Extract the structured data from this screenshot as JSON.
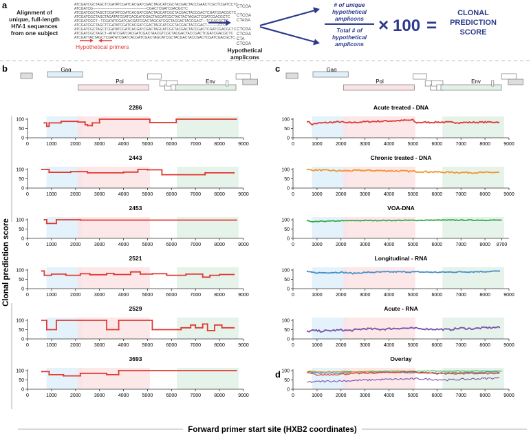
{
  "panel_a": {
    "letter": "a",
    "intro_lines": [
      "Alignment of",
      "unique, full-length",
      "HIV-1 sequences",
      "from one subject"
    ],
    "alignment": [
      "ATCGATCGCTAGCTCGATATCGATCACGATCGACTAGCATCGCTACGACTACCGAACTCGCTCGATCCTC",
      "ATCGATCG-----------------------------------------------CGACTCGATCGACGCTC",
      "ATCGATCGCTAGCTCGATATCGATCACGATCGACTAGCATCGCTACGACTACCGACTCGATCGACGCTC",
      "ATCGATCGCTAGCTAGATATCGATCACGATCGACTAGCATCGCTACTACTAGACTCGATCGACGCTC",
      "ATCGATCGCT---TCGATATCGATCACGATCGACTAGCATCGCTACGACTACCGACT---TCGACGCTC",
      "ATCGATCGCTAGCTCGATATCGATCACGATCGACTAGCATCGCTACGACTACCGACT----------CTC",
      "ATCGATCGCTAGCTCGATATCGATCACGATCGACTAGCATCGCTACGACTACCGACTCGATCGACGCTC",
      "ATCGATCGCTAGCT--ATATCGATCACGATCGACTAACGTCGCTACGACTACCGACTCGATCGACGCTC",
      "ATCGATTACTAGCTCGATATCGATCACGATCGACTAGCATCGCTACGACTACCGACTCGATCGACGCTC"
    ],
    "primers_label": "Hypothetical primers",
    "amplicon_groups": [
      [
        "CTCGA"
      ],
      [
        "CTCGA",
        "CTAGA"
      ],
      [
        "CTCGA",
        "CTCGA",
        "CTA",
        "CTCGA"
      ]
    ],
    "amplicons_label": [
      "Hypothetical",
      "amplicons"
    ],
    "numerator_lines": [
      "# of unique",
      "hypothetical",
      "amplicons"
    ],
    "denominator_lines": [
      "Total # of",
      "hypothetical",
      "amplicons"
    ],
    "times_symbol": "×",
    "multiplier": "100",
    "equals_symbol": "=",
    "result_lines": [
      "CLONAL",
      "PREDICTION",
      "SCORE"
    ]
  },
  "panel_b_letter": "b",
  "panel_c_letter": "c",
  "panel_d_letter": "d",
  "genome": {
    "gag": "Gag",
    "pol": "Pol",
    "env": "Env"
  },
  "y_axis_label": "Clonal prediction score",
  "x_axis_label": "Forward primer start site (HXB2 coordinates)",
  "colors": {
    "gag_shade": "#dff0fa",
    "pol_shade": "#fbe3e5",
    "env_shade": "#e1f1e6",
    "arrow": "#2b3a8c",
    "primer": "#e23b3b",
    "red": "#e03a32",
    "orange": "#f2962e",
    "green": "#3aaa4a",
    "blue": "#4a90c8",
    "purple": "#7b52a8"
  },
  "chart_data": [
    {
      "type": "line",
      "title": "2286",
      "xlim": [
        0,
        9000
      ],
      "ylim": [
        0,
        100
      ],
      "x_ticks": [
        0,
        1000,
        2000,
        3000,
        4000,
        5000,
        6000,
        7000,
        8000,
        9000
      ],
      "y_ticks": [
        0,
        50,
        100
      ],
      "series": [
        {
          "name": "2286",
          "color": "red",
          "noise": 0,
          "x": [
            700,
            800,
            800,
            900,
            900,
            1400,
            1400,
            2100,
            2100,
            2400,
            2400,
            2500,
            2500,
            2700,
            2700,
            3000,
            3000,
            5100,
            5100,
            6200,
            6200,
            8700
          ],
          "y": [
            80,
            80,
            62,
            62,
            80,
            80,
            88,
            88,
            85,
            85,
            70,
            70,
            65,
            65,
            80,
            80,
            100,
            100,
            82,
            82,
            100,
            100
          ]
        }
      ]
    },
    {
      "type": "line",
      "title": "2443",
      "xlim": [
        0,
        9000
      ],
      "ylim": [
        0,
        100
      ],
      "x_ticks": [
        0,
        1000,
        2000,
        3000,
        4000,
        5000,
        6000,
        7000,
        8000,
        9000
      ],
      "y_ticks": [
        0,
        50,
        100
      ],
      "series": [
        {
          "name": "2443",
          "color": "red",
          "noise": 0,
          "x": [
            600,
            900,
            900,
            1800,
            1800,
            2500,
            2500,
            4000,
            4000,
            4600,
            4600,
            5000,
            5000,
            5600,
            5600,
            7400,
            7400,
            8600
          ],
          "y": [
            100,
            100,
            85,
            85,
            88,
            88,
            82,
            82,
            86,
            86,
            100,
            100,
            98,
            98,
            72,
            72,
            82,
            82
          ]
        }
      ]
    },
    {
      "type": "line",
      "title": "2453",
      "xlim": [
        0,
        9000
      ],
      "ylim": [
        0,
        100
      ],
      "x_ticks": [
        0,
        1000,
        2000,
        3000,
        4000,
        5000,
        6000,
        7000,
        8000,
        9000
      ],
      "y_ticks": [
        0,
        50,
        100
      ],
      "series": [
        {
          "name": "2453",
          "color": "red",
          "noise": 0,
          "x": [
            700,
            800,
            800,
            1200,
            1200,
            2200,
            2200,
            8700
          ],
          "y": [
            100,
            100,
            80,
            80,
            100,
            100,
            98,
            98
          ]
        }
      ]
    },
    {
      "type": "line",
      "title": "2521",
      "xlim": [
        0,
        9000
      ],
      "ylim": [
        0,
        100
      ],
      "x_ticks": [
        0,
        1000,
        2000,
        3000,
        4000,
        5000,
        6000,
        7000,
        8000,
        9000
      ],
      "y_ticks": [
        0,
        50,
        100
      ],
      "series": [
        {
          "name": "2521",
          "color": "red",
          "noise": 0,
          "x": [
            600,
            700,
            700,
            1000,
            1000,
            1600,
            1600,
            2200,
            2200,
            2600,
            2600,
            3300,
            3300,
            3600,
            3600,
            4300,
            4300,
            4700,
            4700,
            5200,
            5200,
            5800,
            5800,
            6600,
            6600,
            7300,
            7300,
            7600,
            7600,
            8000,
            8000,
            8600
          ],
          "y": [
            95,
            95,
            72,
            72,
            78,
            78,
            72,
            72,
            80,
            80,
            75,
            75,
            82,
            82,
            76,
            76,
            90,
            90,
            78,
            78,
            80,
            80,
            72,
            72,
            78,
            78,
            62,
            62,
            72,
            72,
            76,
            76
          ]
        }
      ]
    },
    {
      "type": "line",
      "title": "2529",
      "xlim": [
        0,
        9000
      ],
      "ylim": [
        0,
        100
      ],
      "x_ticks": [
        0,
        1000,
        2000,
        3000,
        4000,
        5000,
        6000,
        7000,
        8000,
        9000
      ],
      "y_ticks": [
        0,
        50,
        100
      ],
      "series": [
        {
          "name": "2529",
          "color": "red",
          "noise": 0,
          "x": [
            600,
            800,
            800,
            1200,
            1200,
            3300,
            3300,
            3800,
            3800,
            5200,
            5200,
            6400,
            6400,
            6800,
            6800,
            7000,
            7000,
            7300,
            7300,
            7500,
            7500,
            7800,
            7800,
            8100,
            8100,
            8600
          ],
          "y": [
            100,
            100,
            50,
            50,
            100,
            100,
            50,
            50,
            100,
            100,
            50,
            50,
            60,
            60,
            75,
            75,
            60,
            60,
            80,
            80,
            45,
            45,
            75,
            75,
            60,
            60
          ]
        }
      ]
    },
    {
      "type": "line",
      "title": "3693",
      "xlim": [
        0,
        9000
      ],
      "ylim": [
        0,
        100
      ],
      "x_ticks": [
        0,
        1000,
        2000,
        3000,
        4000,
        5000,
        6000,
        7000,
        8000,
        9000
      ],
      "y_ticks": [
        0,
        50,
        100
      ],
      "series": [
        {
          "name": "3693",
          "color": "red",
          "noise": 0,
          "x": [
            600,
            900,
            900,
            1500,
            1500,
            2200,
            2200,
            3300,
            3300,
            3800,
            3800,
            8700
          ],
          "y": [
            95,
            95,
            78,
            78,
            72,
            72,
            85,
            85,
            78,
            78,
            100,
            100
          ]
        }
      ]
    },
    {
      "type": "line",
      "title": "Acute treated - DNA",
      "xlim": [
        0,
        9000
      ],
      "ylim": [
        0,
        100
      ],
      "x_ticks": [
        0,
        1000,
        2000,
        3000,
        4000,
        5000,
        6000,
        7000,
        8000,
        9000
      ],
      "y_ticks": [
        0,
        50,
        100
      ],
      "series": [
        {
          "name": "Acute treated - DNA",
          "color": "red",
          "noise": 4,
          "x": [
            600,
            800,
            1000,
            2000,
            2200,
            2500,
            3000,
            5000,
            5100,
            6000,
            7000,
            8600
          ],
          "y": [
            90,
            72,
            78,
            86,
            80,
            82,
            86,
            95,
            82,
            84,
            82,
            85
          ]
        }
      ]
    },
    {
      "type": "line",
      "title": "Chronic treated - DNA",
      "xlim": [
        0,
        9000
      ],
      "ylim": [
        0,
        100
      ],
      "x_ticks": [
        0,
        1000,
        2000,
        3000,
        4000,
        5000,
        6000,
        7000,
        8000,
        9000
      ],
      "y_ticks": [
        0,
        50,
        100
      ],
      "series": [
        {
          "name": "Chronic treated - DNA",
          "color": "orange",
          "noise": 4,
          "x": [
            600,
            1000,
            2000,
            3000,
            4000,
            5000,
            6000,
            7000,
            8000,
            8600
          ],
          "y": [
            98,
            97,
            92,
            95,
            93,
            90,
            86,
            84,
            83,
            85
          ]
        }
      ]
    },
    {
      "type": "line",
      "title": "VOA-DNA",
      "xlim": [
        0,
        9000
      ],
      "ylim": [
        0,
        100
      ],
      "x_ticks": [
        0,
        1000,
        2000,
        3000,
        4000,
        5000,
        6000,
        7000,
        8000,
        8700
      ],
      "y_ticks": [
        0,
        50,
        100
      ],
      "series": [
        {
          "name": "VOA-DNA",
          "color": "green",
          "noise": 2,
          "x": [
            600,
            800,
            1200,
            2000,
            2200,
            3000,
            5000,
            6000,
            7000,
            8700
          ],
          "y": [
            95,
            88,
            92,
            94,
            95,
            96,
            97,
            98,
            98,
            98
          ]
        }
      ]
    },
    {
      "type": "line",
      "title": "Longitudinal - RNA",
      "xlim": [
        0,
        9000
      ],
      "ylim": [
        0,
        100
      ],
      "x_ticks": [
        0,
        1000,
        2000,
        3000,
        4000,
        5000,
        6000,
        7000,
        8000,
        9000
      ],
      "y_ticks": [
        0,
        50,
        100
      ],
      "series": [
        {
          "name": "Longitudinal - RNA",
          "color": "blue",
          "noise": 3,
          "x": [
            600,
            1000,
            2000,
            2500,
            3000,
            4000,
            5000,
            6000,
            7000,
            8000,
            8600
          ],
          "y": [
            90,
            85,
            88,
            82,
            87,
            90,
            90,
            88,
            90,
            92,
            94
          ]
        }
      ]
    },
    {
      "type": "line",
      "title": "Acute - RNA",
      "xlim": [
        0,
        9000
      ],
      "ylim": [
        0,
        100
      ],
      "x_ticks": [
        0,
        1000,
        2000,
        3000,
        4000,
        5000,
        6000,
        7000,
        8000,
        9000
      ],
      "y_ticks": [
        0,
        50,
        100
      ],
      "series": [
        {
          "name": "Acute - RNA",
          "color": "purple",
          "noise": 5,
          "x": [
            600,
            800,
            1200,
            2000,
            2400,
            3000,
            3600,
            4500,
            5200,
            6000,
            6500,
            7000,
            7500,
            8000,
            8600
          ],
          "y": [
            40,
            45,
            42,
            48,
            45,
            55,
            52,
            58,
            56,
            52,
            50,
            58,
            55,
            60,
            62
          ]
        }
      ]
    },
    {
      "type": "line",
      "title": "Overlay",
      "xlim": [
        0,
        9000
      ],
      "ylim": [
        0,
        100
      ],
      "x_ticks": [
        0,
        1000,
        2000,
        3000,
        4000,
        5000,
        6000,
        7000,
        8000,
        9000
      ],
      "y_ticks": [
        0,
        50,
        100
      ],
      "series": [
        {
          "name": "VOA-DNA",
          "color": "green",
          "noise": 2,
          "x": [
            600,
            1000,
            2000,
            3000,
            5000,
            7000,
            8700
          ],
          "y": [
            95,
            92,
            94,
            96,
            97,
            98,
            98
          ]
        },
        {
          "name": "Chronic treated - DNA",
          "color": "orange",
          "noise": 3,
          "x": [
            600,
            2000,
            4000,
            6000,
            8600
          ],
          "y": [
            97,
            92,
            93,
            86,
            85
          ]
        },
        {
          "name": "Longitudinal - RNA",
          "color": "blue",
          "noise": 3,
          "x": [
            600,
            2000,
            4000,
            6000,
            8600
          ],
          "y": [
            88,
            86,
            90,
            88,
            92
          ]
        },
        {
          "name": "Acute treated - DNA",
          "color": "red",
          "noise": 4,
          "x": [
            600,
            1000,
            3000,
            5000,
            6000,
            8600
          ],
          "y": [
            88,
            76,
            86,
            94,
            84,
            84
          ]
        },
        {
          "name": "Acute - RNA",
          "color": "purple",
          "noise": 5,
          "x": [
            600,
            1200,
            2400,
            3600,
            5200,
            6500,
            8000,
            8600
          ],
          "y": [
            38,
            42,
            46,
            52,
            56,
            50,
            58,
            60
          ]
        }
      ]
    }
  ]
}
